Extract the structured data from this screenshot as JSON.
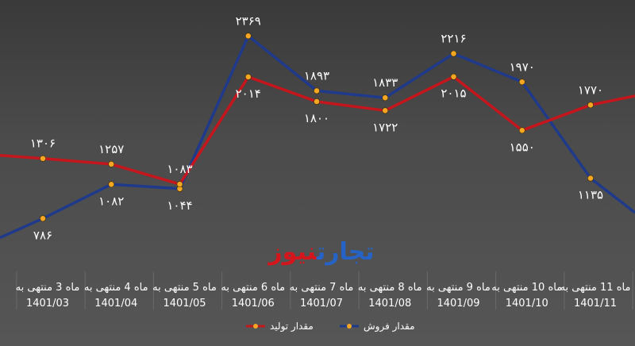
{
  "chart_data": {
    "type": "line",
    "title": "",
    "xlabel": "",
    "ylabel": "",
    "grid": "x-only",
    "legend_position": "bottom-center",
    "ylim": [
      0,
      2600
    ],
    "categories": [
      {
        "line1": "ماه 3 منتهی به",
        "line2": "1401/03"
      },
      {
        "line1": "ماه 4 منتهی به",
        "line2": "1401/04"
      },
      {
        "line1": "ماه 5 منتهی به",
        "line2": "1401/05"
      },
      {
        "line1": "ماه 6 منتهی به",
        "line2": "1401/06"
      },
      {
        "line1": "ماه 7 منتهی به",
        "line2": "1401/07"
      },
      {
        "line1": "ماه 8 منتهی به",
        "line2": "1401/08"
      },
      {
        "line1": "ماه 9 منتهی به",
        "line2": "1401/09"
      },
      {
        "line1": "ماه 10 منتهی به",
        "line2": "1401/10"
      },
      {
        "line1": "ماه 11 منتهی به",
        "line2": "1401/11"
      }
    ],
    "series": [
      {
        "name": "مقدار فروش",
        "color": "#1f3a8a",
        "values": [
          786,
          1082,
          1044,
          2369,
          1893,
          1833,
          2216,
          1970,
          1135
        ],
        "labels": [
          "۷۸۶",
          "۱۰۸۲",
          "۱۰۴۴",
          "۲۳۶۹",
          "۱۸۹۳",
          "۱۸۳۳",
          "۲۲۱۶",
          "۱۹۷۰",
          "۱۱۳۵"
        ]
      },
      {
        "name": "مقدار تولید",
        "color": "#c4161c",
        "values": [
          1306,
          1257,
          1083,
          2014,
          1800,
          1722,
          2015,
          1550,
          1770
        ],
        "labels": [
          "۱۳۰۶",
          "۱۲۵۷",
          "۱۰۸۳",
          "۲۰۱۴",
          "۱۸۰۰",
          "۱۷۲۲",
          "۲۰۱۵",
          "۱۵۵۰",
          "۱۷۷۰"
        ]
      }
    ],
    "marker_color": "#f5a623"
  },
  "watermark": {
    "part1": "تجارت",
    "part2": "نیوز",
    "color1": "#2563c7",
    "color2": "#d4161c"
  }
}
